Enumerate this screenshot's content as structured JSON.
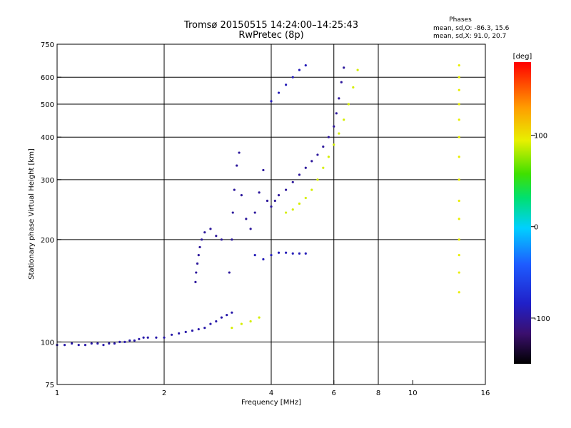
{
  "header": {
    "title": "Tromsø 20150515 14:24:00–14:25:43",
    "subtitle": "RwPretec (8p)",
    "phases_title": "Phases",
    "phases_line1": "mean, sd,O: -86.3, 15.6",
    "phases_line2": "mean, sd,X:  91.0, 20.7"
  },
  "chart_data": {
    "type": "scatter",
    "xlabel": "Frequency [MHz]",
    "ylabel": "Stationary phase Virtual Height [km]",
    "x_scale": "log",
    "y_scale": "log",
    "xlim": [
      1,
      16
    ],
    "ylim": [
      75,
      750
    ],
    "x_ticks": [
      1,
      2,
      4,
      6,
      8,
      10,
      16
    ],
    "y_ticks": [
      75,
      100,
      200,
      300,
      400,
      500,
      600,
      750
    ],
    "x_grid": [
      2,
      4,
      6,
      8
    ],
    "y_grid": [
      100,
      200,
      300,
      400,
      500,
      600
    ],
    "grid": true,
    "colorbar": {
      "label": "[deg]",
      "range": [
        -150,
        180
      ],
      "ticks": [
        -100,
        0,
        100
      ],
      "colormap": "rainbow"
    },
    "series": [
      {
        "phase": -95,
        "points": [
          [
            1.0,
            98
          ],
          [
            1.05,
            98
          ],
          [
            1.1,
            99
          ],
          [
            1.15,
            98
          ],
          [
            1.2,
            98
          ],
          [
            1.25,
            99
          ],
          [
            1.3,
            99
          ],
          [
            1.35,
            98
          ],
          [
            1.4,
            99
          ],
          [
            1.45,
            99
          ],
          [
            1.5,
            100
          ],
          [
            1.55,
            100
          ],
          [
            1.6,
            101
          ],
          [
            1.65,
            101
          ],
          [
            1.7,
            102
          ],
          [
            1.75,
            103
          ],
          [
            1.8,
            103
          ],
          [
            1.9,
            103
          ],
          [
            2.0,
            103
          ],
          [
            2.1,
            105
          ],
          [
            2.2,
            106
          ],
          [
            2.3,
            107
          ],
          [
            2.4,
            108
          ],
          [
            2.5,
            109
          ],
          [
            2.6,
            110
          ],
          [
            2.7,
            113
          ],
          [
            2.8,
            115
          ],
          [
            2.9,
            118
          ],
          [
            3.0,
            120
          ],
          [
            3.1,
            122
          ]
        ]
      },
      {
        "phase": -100,
        "points": [
          [
            2.45,
            150
          ],
          [
            2.46,
            160
          ],
          [
            2.48,
            170
          ],
          [
            2.5,
            180
          ],
          [
            2.52,
            190
          ],
          [
            2.55,
            200
          ],
          [
            2.6,
            210
          ],
          [
            2.7,
            215
          ],
          [
            2.8,
            205
          ],
          [
            2.9,
            200
          ],
          [
            3.05,
            160
          ],
          [
            3.1,
            200
          ],
          [
            3.12,
            240
          ],
          [
            3.15,
            280
          ],
          [
            3.2,
            330
          ],
          [
            3.25,
            360
          ],
          [
            3.3,
            270
          ],
          [
            3.4,
            230
          ],
          [
            3.5,
            215
          ],
          [
            3.6,
            240
          ],
          [
            3.7,
            275
          ],
          [
            3.8,
            320
          ],
          [
            3.9,
            260
          ],
          [
            4.0,
            250
          ],
          [
            4.1,
            260
          ],
          [
            4.2,
            270
          ],
          [
            4.4,
            280
          ],
          [
            4.6,
            295
          ],
          [
            4.8,
            310
          ],
          [
            5.0,
            325
          ],
          [
            5.2,
            340
          ],
          [
            5.4,
            355
          ],
          [
            5.6,
            375
          ],
          [
            5.8,
            400
          ],
          [
            6.0,
            430
          ],
          [
            6.1,
            470
          ],
          [
            6.2,
            520
          ],
          [
            6.3,
            580
          ],
          [
            6.4,
            640
          ]
        ]
      },
      {
        "phase": -90,
        "points": [
          [
            3.6,
            180
          ],
          [
            3.8,
            175
          ],
          [
            4.0,
            180
          ],
          [
            4.2,
            183
          ],
          [
            4.4,
            183
          ],
          [
            4.6,
            182
          ],
          [
            4.8,
            182
          ],
          [
            5.0,
            182
          ],
          [
            4.0,
            510
          ],
          [
            4.2,
            540
          ],
          [
            4.4,
            570
          ],
          [
            4.6,
            600
          ],
          [
            4.8,
            630
          ],
          [
            5.0,
            650
          ]
        ]
      },
      {
        "phase": 90,
        "points": [
          [
            3.1,
            110
          ],
          [
            3.3,
            113
          ],
          [
            3.5,
            115
          ],
          [
            3.7,
            118
          ],
          [
            4.4,
            240
          ],
          [
            4.6,
            245
          ],
          [
            4.8,
            255
          ],
          [
            5.0,
            265
          ],
          [
            5.2,
            280
          ],
          [
            5.4,
            300
          ],
          [
            5.6,
            325
          ],
          [
            5.8,
            350
          ],
          [
            6.0,
            380
          ],
          [
            6.2,
            410
          ],
          [
            6.4,
            450
          ],
          [
            6.6,
            500
          ],
          [
            6.8,
            560
          ],
          [
            7.0,
            630
          ]
        ]
      },
      {
        "phase": 95,
        "points": [
          [
            13.5,
            140
          ],
          [
            13.5,
            160
          ],
          [
            13.5,
            180
          ],
          [
            13.5,
            200
          ],
          [
            13.5,
            230
          ],
          [
            13.5,
            260
          ],
          [
            13.5,
            300
          ],
          [
            13.5,
            350
          ],
          [
            13.5,
            400
          ],
          [
            13.5,
            450
          ],
          [
            13.5,
            500
          ],
          [
            13.5,
            550
          ],
          [
            13.5,
            600
          ],
          [
            13.5,
            650
          ]
        ]
      }
    ]
  }
}
